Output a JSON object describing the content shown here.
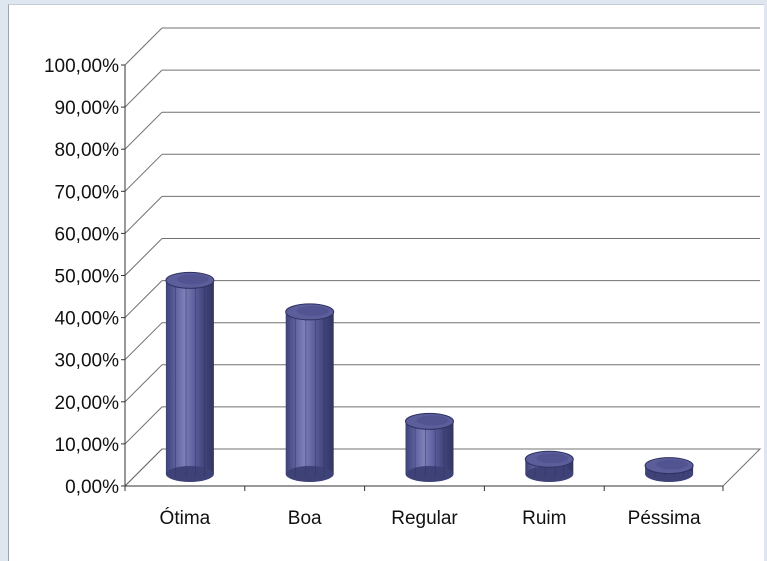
{
  "chart_data": {
    "type": "bar",
    "style": "3d-cylinder",
    "categories": [
      "Ótima",
      "Boa",
      "Regular",
      "Ruim",
      "Péssima"
    ],
    "values": [
      46.0,
      38.5,
      12.5,
      3.5,
      2.0
    ],
    "ylim": [
      0,
      100
    ],
    "yticks": [
      "0,00%",
      "10,00%",
      "20,00%",
      "30,00%",
      "40,00%",
      "50,00%",
      "60,00%",
      "70,00%",
      "80,00%",
      "90,00%",
      "100,00%"
    ],
    "title": "",
    "xlabel": "",
    "ylabel": "",
    "grid": true,
    "legend": "none",
    "colors": {
      "bar": "#5b5e9b",
      "bar_dark": "#3f4277",
      "bar_light": "#7c7fb8",
      "grid": "#707070",
      "background": "#ffffff"
    }
  }
}
